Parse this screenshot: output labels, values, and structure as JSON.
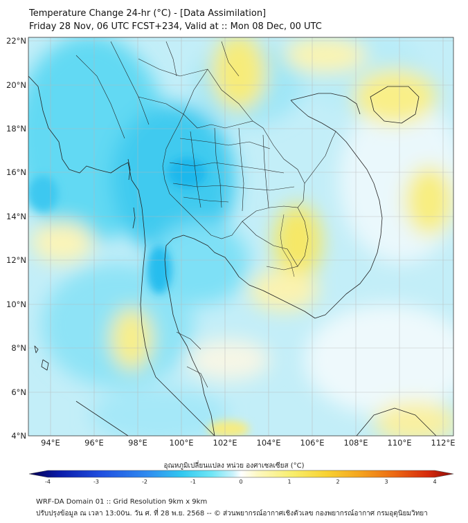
{
  "title_line1": "Temperature Change 24-hr (°C) - [Data Assimilation]",
  "title_line2": "Friday 28 Nov, 06 UTC FCST+234, Valid at :: Mon 08 Dec, 00 UTC",
  "lat_labels": [
    "22°N",
    "20°N",
    "18°N",
    "16°N",
    "14°N",
    "12°N",
    "10°N",
    "8°N",
    "6°N",
    "4°N"
  ],
  "lon_labels": [
    "94°E",
    "96°E",
    "98°E",
    "100°E",
    "102°E",
    "104°E",
    "106°E",
    "108°E",
    "110°E",
    "112°E"
  ],
  "colorbar": {
    "title": "อุณหภูมิเปลี่ยนแปลง หน่วย องศาเซลเซียส (°C)",
    "ticks": [
      "-4",
      "-3",
      "-2",
      "-1",
      "0",
      "1",
      "2",
      "3",
      "4"
    ],
    "colors": [
      "#05004f",
      "#0a1aa8",
      "#1f4fe0",
      "#2f8cf0",
      "#30c8f0",
      "#6fe6f6",
      "#c8f2fb",
      "#ffffff",
      "#fdf8c0",
      "#f8ee6c",
      "#f8d232",
      "#f4a41e",
      "#ec6a14",
      "#d62a0c",
      "#8e0a06"
    ]
  },
  "footer_line1": "WRF-DA Domain 01 :: Grid Resolution 9km x 9km",
  "footer_line2": "ปรับปรุงข้อมูล ณ เวลา 13:00น. วัน ศ. ที่ 28 พ.ย. 2568 -- © ส่วนพยากรณ์อากาศเชิงตัวเลข กองพยากรณ์อากาศ กรมอุตุนิยมวิทยา"
}
